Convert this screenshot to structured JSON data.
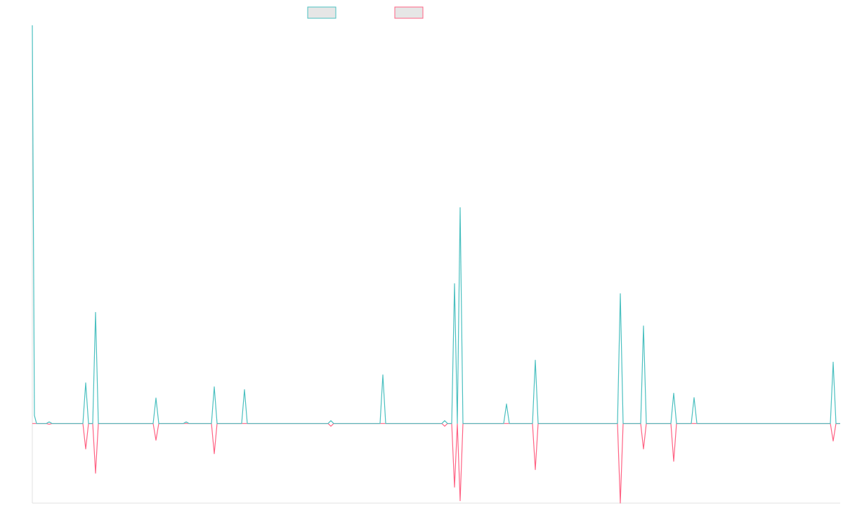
{
  "chart_data": {
    "type": "line",
    "x": [
      0,
      3,
      6,
      20,
      24,
      28,
      72,
      76,
      80,
      86,
      90,
      94,
      172,
      176,
      180,
      215,
      219,
      223,
      255,
      259,
      263,
      298,
      302,
      306,
      421,
      425,
      429,
      495,
      499,
      503,
      583,
      587,
      591,
      597,
      601,
      605,
      609,
      613,
      671,
      675,
      679,
      712,
      716,
      720,
      833,
      837,
      841,
      866,
      870,
      874,
      909,
      913,
      917,
      938,
      942,
      946,
      1136,
      1140,
      1144,
      1150
    ],
    "series": [
      {
        "color": "#4bc0c0",
        "values": [
          100,
          2,
          0,
          0,
          0.4,
          0,
          0,
          10.2,
          0,
          0,
          27.9,
          0,
          0,
          6.4,
          0,
          0,
          0.4,
          0,
          0,
          9.2,
          0,
          0,
          8.5,
          0,
          0,
          0.7,
          0,
          0,
          12.2,
          0,
          0,
          0.7,
          0,
          0,
          35.1,
          0,
          54.2,
          0,
          0,
          4.9,
          0,
          0,
          15.9,
          0,
          0,
          32.6,
          0,
          0,
          24.5,
          0,
          0,
          7.6,
          0,
          0,
          6.5,
          0,
          0,
          15.4,
          0,
          0
        ]
      },
      {
        "color": "#ff6384",
        "values": [
          0,
          0,
          0,
          0,
          -0.2,
          0,
          0,
          -6.4,
          0,
          0,
          -12.5,
          0,
          0,
          -4.2,
          0,
          0,
          0,
          0,
          0,
          -7.6,
          0,
          0,
          0,
          0,
          0,
          -0.7,
          0,
          0,
          0,
          0,
          0,
          -0.7,
          0,
          0,
          -16,
          0,
          -19.4,
          0,
          0,
          0,
          0,
          0,
          -11.6,
          0,
          0,
          -20,
          0,
          0,
          -6.4,
          0,
          0,
          -9.5,
          0,
          0,
          0,
          0,
          0,
          -4.4,
          0,
          0
        ]
      }
    ],
    "xlim": [
      0,
      1150
    ],
    "ylim": [
      -20,
      100
    ],
    "legend": "top"
  }
}
